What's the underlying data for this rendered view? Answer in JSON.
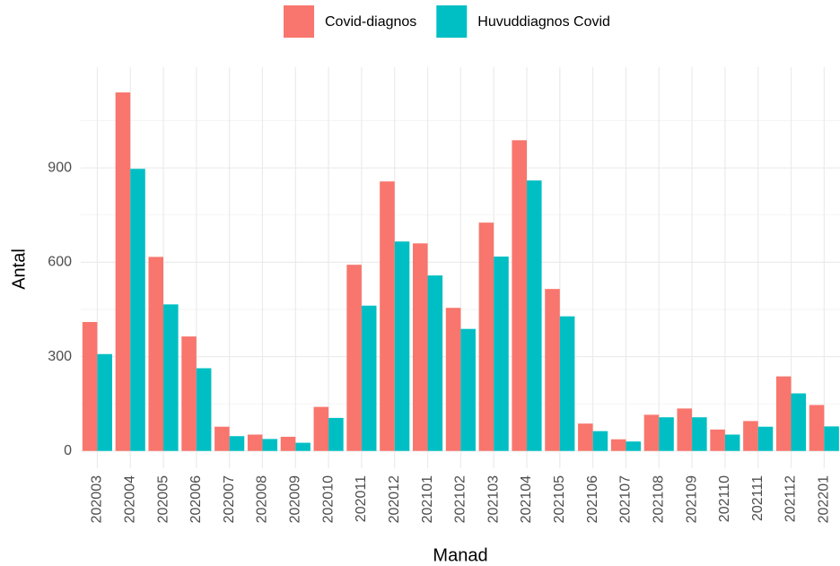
{
  "chart_data": {
    "type": "bar",
    "x_label": "Manad",
    "y_label": "Antal",
    "categories": [
      "202003",
      "202004",
      "202005",
      "202006",
      "202007",
      "202008",
      "202009",
      "202010",
      "202011",
      "202012",
      "202101",
      "202102",
      "202103",
      "202104",
      "202105",
      "202106",
      "202107",
      "202108",
      "202109",
      "202110",
      "202111",
      "202112",
      "202201"
    ],
    "series": [
      {
        "name": "Covid-diagnos",
        "color": "#F8766D",
        "values": [
          410,
          1140,
          617,
          364,
          77,
          52,
          45,
          140,
          592,
          857,
          660,
          455,
          726,
          988,
          515,
          87,
          37,
          115,
          135,
          68,
          95,
          237,
          146
        ]
      },
      {
        "name": "Huvuddiagnos Covid",
        "color": "#00BFC4",
        "values": [
          308,
          897,
          466,
          263,
          47,
          38,
          26,
          105,
          462,
          666,
          558,
          388,
          618,
          860,
          428,
          63,
          30,
          107,
          107,
          52,
          77,
          183,
          78
        ]
      }
    ],
    "ylim": [
      -55,
      1220
    ],
    "yticks": [
      0,
      300,
      600,
      900
    ],
    "grid": true,
    "minor_grid": true,
    "legend": "top"
  }
}
